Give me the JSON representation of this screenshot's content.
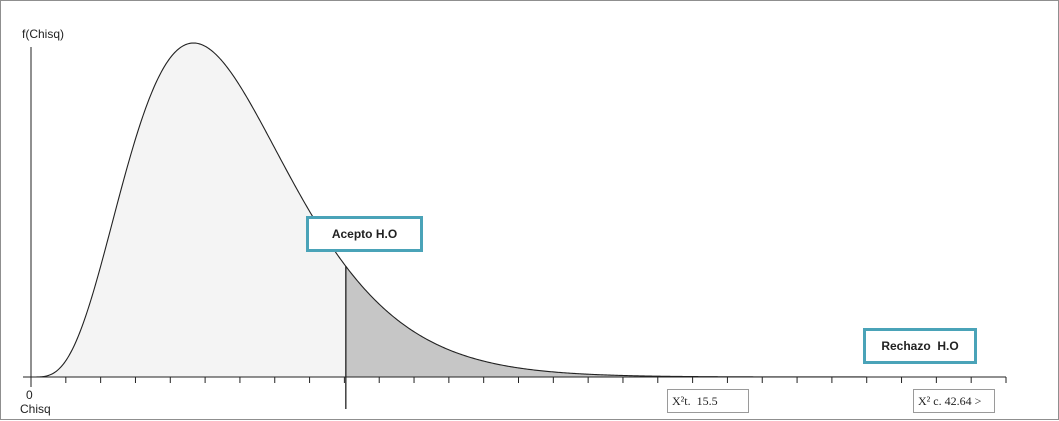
{
  "chart_data": {
    "type": "area",
    "distribution": "chi-square",
    "degrees_of_freedom": 10,
    "x_range": [
      0,
      48
    ],
    "y_axis_label": "f(Chisq)",
    "x_axis_label": "Chisq",
    "x_origin_label": "0",
    "critical_value": 15.5,
    "computed_value": 42.64,
    "regions": [
      {
        "name": "Acepto H.O",
        "from": 0,
        "to": 15.5,
        "color": "#f4f4f4"
      },
      {
        "name": "Rechazo  H.O",
        "from": 15.5,
        "to": 48,
        "color": "#c6c6c6"
      }
    ],
    "curve_color": "#222222",
    "accent_color": "#4aa3b8"
  },
  "labels": {
    "y_axis": "f(Chisq)",
    "x_axis": "Chisq",
    "origin": "0",
    "accept_region": "Acepto H.O",
    "reject_region": "Rechazo  H.O",
    "critical_box": "X²t.  15.5",
    "computed_box": "X² c. 42.64 >"
  }
}
